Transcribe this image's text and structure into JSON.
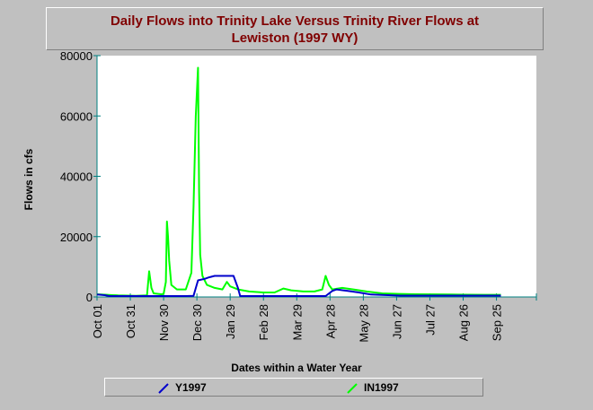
{
  "chart_data": {
    "type": "line",
    "title_line1": "Daily Flows into Trinity Lake Versus Trinity River Flows at",
    "title_line2": "Lewiston (1997 WY)",
    "xlabel": "Dates within a Water Year",
    "ylabel": "Flows in cfs",
    "ylim": [
      0,
      80000
    ],
    "yticks": [
      0,
      20000,
      40000,
      60000,
      80000
    ],
    "ytick_labels": [
      "0",
      "20000",
      "40000",
      "60000",
      "80000"
    ],
    "xlim": [
      "1996-10-01",
      "1997-11-01"
    ],
    "xticks": [
      "1996-10-01",
      "1996-10-31",
      "1996-11-30",
      "1996-12-30",
      "1997-01-29",
      "1997-02-28",
      "1997-03-30",
      "1997-04-29",
      "1997-05-29",
      "1997-06-28",
      "1997-07-28",
      "1997-08-27",
      "1997-09-26"
    ],
    "xtick_labels": [
      "Oct 01",
      "Oct 31",
      "Nov 30",
      "Dec 30",
      "Jan 29",
      "Feb 28",
      "Mar 29",
      "Apr 28",
      "May 28",
      "Jun 27",
      "Jul 27",
      "Aug 26",
      "Sep 25"
    ],
    "grid": false,
    "legend_position": "bottom",
    "series": [
      {
        "name": "Y1997",
        "color": "#0000cc",
        "points": [
          [
            "1996-10-01",
            800
          ],
          [
            "1996-10-08",
            600
          ],
          [
            "1996-10-12",
            300
          ],
          [
            "1996-10-20",
            300
          ],
          [
            "1996-11-10",
            300
          ],
          [
            "1996-12-20",
            300
          ],
          [
            "1996-12-27",
            400
          ],
          [
            "1996-12-31",
            5500
          ],
          [
            "1997-01-06",
            6000
          ],
          [
            "1997-01-10",
            6500
          ],
          [
            "1997-01-15",
            7000
          ],
          [
            "1997-02-01",
            7000
          ],
          [
            "1997-02-05",
            3000
          ],
          [
            "1997-02-07",
            300
          ],
          [
            "1997-03-15",
            300
          ],
          [
            "1997-04-25",
            300
          ],
          [
            "1997-05-01",
            2000
          ],
          [
            "1997-05-05",
            2500
          ],
          [
            "1997-05-15",
            2000
          ],
          [
            "1997-05-25",
            1500
          ],
          [
            "1997-06-05",
            800
          ],
          [
            "1997-07-01",
            450
          ],
          [
            "1997-08-01",
            450
          ],
          [
            "1997-09-01",
            450
          ],
          [
            "1997-09-30",
            450
          ]
        ]
      },
      {
        "name": "IN1997",
        "color": "#00ff00",
        "points": [
          [
            "1996-10-01",
            900
          ],
          [
            "1996-10-10",
            700
          ],
          [
            "1996-10-20",
            500
          ],
          [
            "1996-11-05",
            400
          ],
          [
            "1996-11-15",
            500
          ],
          [
            "1996-11-17",
            8500
          ],
          [
            "1996-11-19",
            3000
          ],
          [
            "1996-11-21",
            1200
          ],
          [
            "1996-11-28",
            900
          ],
          [
            "1996-11-30",
            1000
          ],
          [
            "1996-12-02",
            5000
          ],
          [
            "1996-12-03",
            25000
          ],
          [
            "1996-12-04",
            20000
          ],
          [
            "1996-12-05",
            12000
          ],
          [
            "1996-12-07",
            4000
          ],
          [
            "1996-12-12",
            2500
          ],
          [
            "1996-12-20",
            2500
          ],
          [
            "1996-12-25",
            8000
          ],
          [
            "1996-12-27",
            30000
          ],
          [
            "1996-12-29",
            60000
          ],
          [
            "1996-12-31",
            76000
          ],
          [
            "1997-01-01",
            35000
          ],
          [
            "1997-01-02",
            14000
          ],
          [
            "1997-01-04",
            7000
          ],
          [
            "1997-01-08",
            4000
          ],
          [
            "1997-01-15",
            3000
          ],
          [
            "1997-01-22",
            2500
          ],
          [
            "1997-01-26",
            5000
          ],
          [
            "1997-01-29",
            3500
          ],
          [
            "1997-02-05",
            2500
          ],
          [
            "1997-02-15",
            1800
          ],
          [
            "1997-02-28",
            1500
          ],
          [
            "1997-03-10",
            1500
          ],
          [
            "1997-03-18",
            2800
          ],
          [
            "1997-03-25",
            2200
          ],
          [
            "1997-04-05",
            1800
          ],
          [
            "1997-04-15",
            1800
          ],
          [
            "1997-04-22",
            2500
          ],
          [
            "1997-04-25",
            7000
          ],
          [
            "1997-04-28",
            4000
          ],
          [
            "1997-05-01",
            2500
          ],
          [
            "1997-05-10",
            3000
          ],
          [
            "1997-05-20",
            2500
          ],
          [
            "1997-06-01",
            1800
          ],
          [
            "1997-06-15",
            1200
          ],
          [
            "1997-07-01",
            1000
          ],
          [
            "1997-07-15",
            900
          ],
          [
            "1997-08-01",
            850
          ],
          [
            "1997-08-15",
            800
          ],
          [
            "1997-09-01",
            750
          ],
          [
            "1997-09-15",
            700
          ],
          [
            "1997-09-30",
            700
          ]
        ]
      }
    ]
  }
}
